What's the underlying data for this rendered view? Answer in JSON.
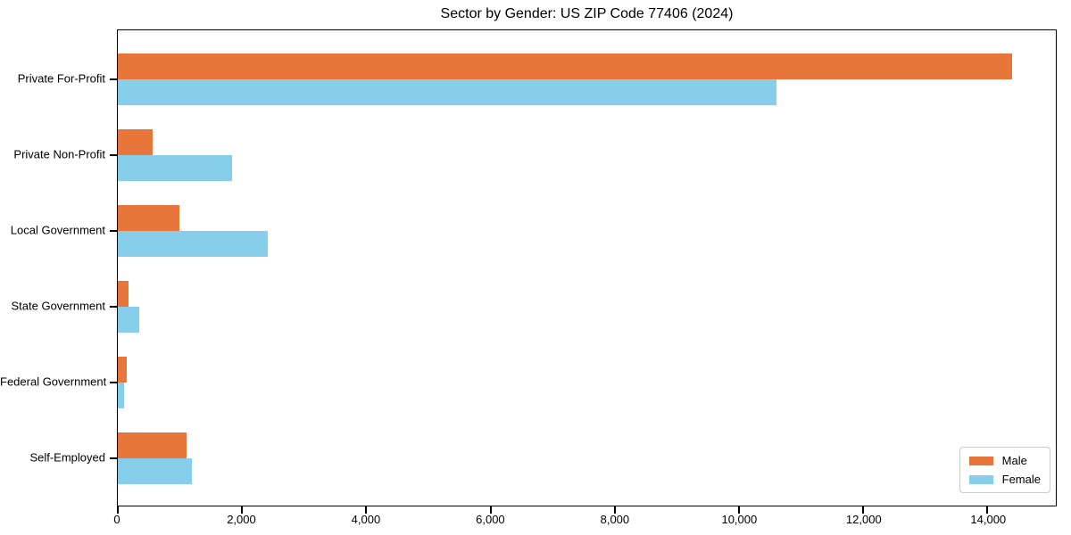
{
  "title": "Sector by Gender: US ZIP Code 77406 (2024)",
  "chart_data": {
    "type": "bar",
    "orientation": "horizontal",
    "title": "Sector by Gender: US ZIP Code 77406 (2024)",
    "categories": [
      "Private For-Profit",
      "Private Non-Profit",
      "Local Government",
      "State Government",
      "Federal Government",
      "Self-Employed"
    ],
    "series": [
      {
        "name": "Male",
        "color": "#E8763B",
        "values": [
          14390,
          560,
          990,
          170,
          145,
          1105
        ]
      },
      {
        "name": "Female",
        "color": "#87CEEB",
        "values": [
          10600,
          1840,
          2410,
          345,
          100,
          1190
        ]
      }
    ],
    "xlabel": "",
    "ylabel": "",
    "xlim": [
      0,
      15100
    ],
    "xticks": [
      0,
      2000,
      4000,
      6000,
      8000,
      10000,
      12000,
      14000
    ],
    "xtick_labels": [
      "0",
      "2,000",
      "4,000",
      "6,000",
      "8,000",
      "10,000",
      "12,000",
      "14,000"
    ],
    "grid": false,
    "legend": {
      "position": "lower right",
      "entries": [
        "Male",
        "Female"
      ]
    }
  },
  "colors": {
    "male": "#E8763B",
    "female": "#87CEEB",
    "axis": "#000000",
    "legend_border": "#cccccc",
    "background": "#ffffff"
  }
}
